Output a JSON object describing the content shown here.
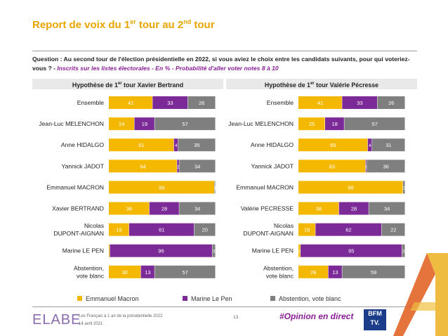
{
  "title": {
    "main": "Report de voix du 1",
    "sup1": "er",
    "middle": " tour au 2",
    "sup2": "nd",
    "end": " tour"
  },
  "question": {
    "text": "Question : Au second tour de l'élection présidentielle en 2022, si vous aviez le choix entre les candidats suivants, pour qui voteriez-vous ? - ",
    "highlight": "Inscrits sur les listes électorales - En % - Probabilité d'aller voter notes 8 à 10"
  },
  "panels": {
    "left_header": {
      "pre": "Hypothèse de 1",
      "sup": "er",
      "post": " tour Xavier Bertrand"
    },
    "right_header": {
      "pre": "Hypothèse de 1",
      "sup": "er",
      "post": " tour Valérie Pécresse"
    }
  },
  "colors": {
    "macron": "#f5b800",
    "lepen": "#7b2a98",
    "abstention": "#7f7f7f",
    "label_text": "#ffffff",
    "small_macron_text": "#f5b800"
  },
  "legend": [
    {
      "label": "Emmanuel Macron",
      "color": "#f5b800"
    },
    {
      "label": "Marine Le Pen",
      "color": "#7b2a98"
    },
    {
      "label": "Abstention, vote blanc",
      "color": "#7f7f7f"
    }
  ],
  "chart_data": [
    {
      "type": "bar",
      "orientation": "horizontal",
      "stacked": true,
      "title": "Hypothèse de 1er tour Xavier Bertrand",
      "categories": [
        "Ensemble",
        "Jean-Luc MELENCHON",
        "Anne HIDALGO",
        "Yannick JADOT",
        "Emmanuel MACRON",
        "Xavier BERTRAND",
        "Nicolas DUPONT-AIGNAN",
        "Marine LE PEN",
        "Abstention, vote blanc"
      ],
      "category_lines": [
        [
          "Ensemble"
        ],
        [
          "Jean-Luc MELENCHON"
        ],
        [
          "Anne HIDALGO"
        ],
        [
          "Yannick JADOT"
        ],
        [
          "Emmanuel MACRON"
        ],
        [
          "Xavier BERTRAND"
        ],
        [
          "Nicolas",
          "DUPONT-AIGNAN"
        ],
        [
          "Marine LE PEN"
        ],
        [
          "Abstention,",
          "vote blanc"
        ]
      ],
      "series": [
        {
          "name": "Emmanuel Macron",
          "values": [
            41,
            24,
            61,
            64,
            99,
            38,
            19,
            1,
            30
          ]
        },
        {
          "name": "Marine Le Pen",
          "values": [
            33,
            19,
            4,
            2,
            0,
            28,
            61,
            96,
            13
          ]
        },
        {
          "name": "Abstention, vote blanc",
          "values": [
            26,
            57,
            35,
            34,
            1,
            34,
            20,
            3,
            57
          ]
        }
      ],
      "labels": [
        [
          "41",
          "33",
          "26"
        ],
        [
          "24",
          "19",
          "57"
        ],
        [
          "61",
          "4",
          "35"
        ],
        [
          "64",
          "2",
          "34"
        ],
        [
          "99",
          "",
          "1"
        ],
        [
          "38",
          "28",
          "34"
        ],
        [
          "19",
          "61",
          "20"
        ],
        [
          "",
          "96",
          "3"
        ],
        [
          "30",
          "13",
          "57"
        ]
      ],
      "xlim": [
        0,
        100
      ]
    },
    {
      "type": "bar",
      "orientation": "horizontal",
      "stacked": true,
      "title": "Hypothèse de 1er tour Valérie Pécresse",
      "categories": [
        "Ensemble",
        "Jean-Luc MELENCHON",
        "Anne HIDALGO",
        "Yannick JADOT",
        "Emmanuel MACRON",
        "Valérie PECRESSE",
        "Nicolas DUPONT-AIGNAN",
        "Marine LE PEN",
        "Abstention, vote blanc"
      ],
      "category_lines": [
        [
          "Ensemble"
        ],
        [
          "Jean-Luc MELENCHON"
        ],
        [
          "Anne HIDALGO"
        ],
        [
          "Yannick JADOT"
        ],
        [
          "Emmanuel MACRON"
        ],
        [
          "Valérie PECRESSE"
        ],
        [
          "Nicolas",
          "DUPONT-AIGNAN"
        ],
        [
          "Marine LE PEN"
        ],
        [
          "Abstention,",
          "vote blanc"
        ]
      ],
      "series": [
        {
          "name": "Emmanuel Macron",
          "values": [
            41,
            25,
            65,
            63,
            98,
            38,
            16,
            2,
            28
          ]
        },
        {
          "name": "Marine Le Pen",
          "values": [
            33,
            18,
            4,
            1,
            0,
            28,
            62,
            95,
            13
          ]
        },
        {
          "name": "Abstention, vote blanc",
          "values": [
            26,
            57,
            31,
            36,
            2,
            34,
            22,
            3,
            59
          ]
        }
      ],
      "labels": [
        [
          "41",
          "33",
          "26"
        ],
        [
          "25",
          "18",
          "57"
        ],
        [
          "65",
          "4",
          "31"
        ],
        [
          "63",
          "1",
          "36"
        ],
        [
          "98",
          "",
          "2"
        ],
        [
          "38",
          "28",
          "34"
        ],
        [
          "16",
          "62",
          "22"
        ],
        [
          "2",
          "95",
          "3"
        ],
        [
          "28",
          "13",
          "59"
        ]
      ],
      "xlim": [
        0,
        100
      ]
    }
  ],
  "footer": {
    "logo": "ELABE",
    "line1": "Les Français à 1 an de la présidentielle 2022",
    "line2": "14 avril 2021",
    "page": "13",
    "hashtag": "#Opinion en direct",
    "bfm_line1": "BFM",
    "bfm_line2": "TV."
  }
}
